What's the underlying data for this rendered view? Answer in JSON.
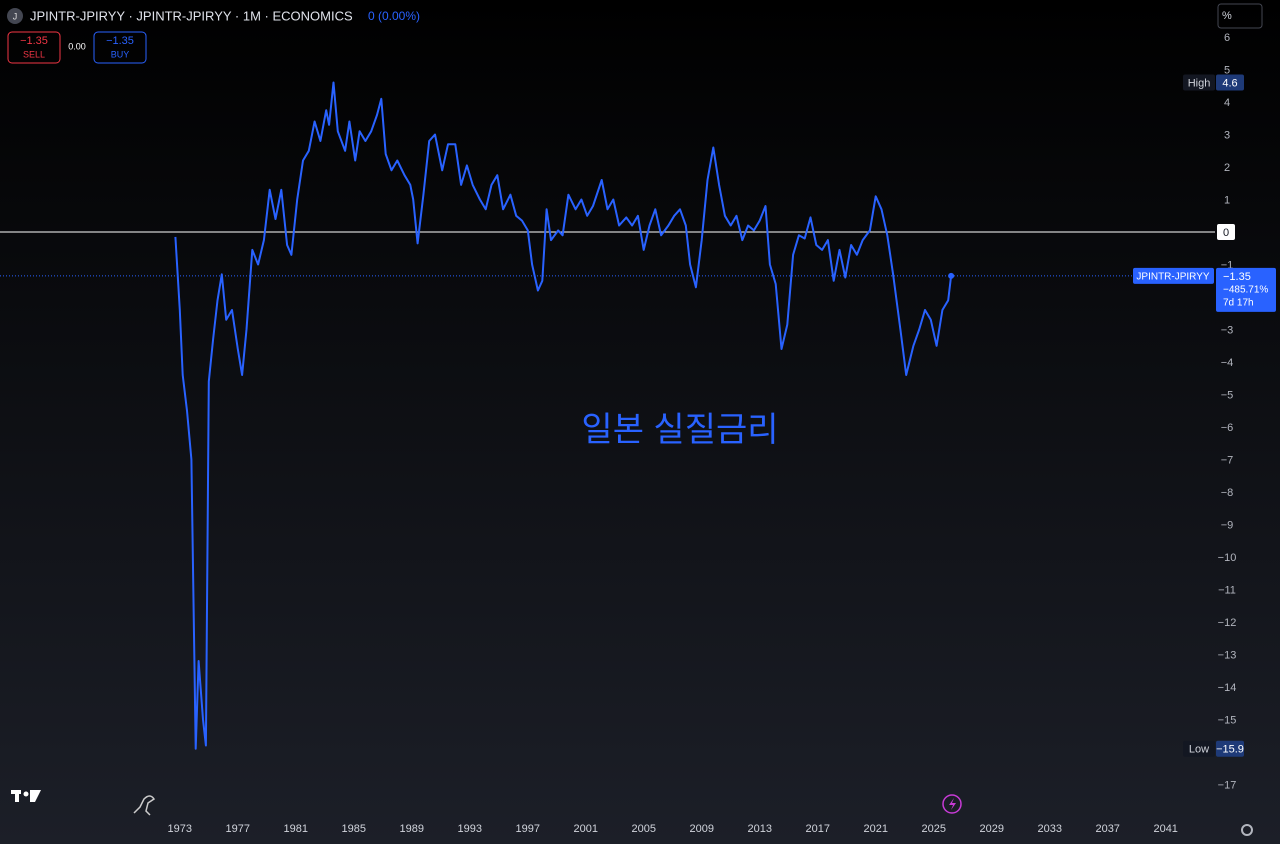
{
  "header": {
    "symbol": "JPINTR-JPIRYY · JPINTR-JPIRYY · 1M · ECONOMICS",
    "icon": "J",
    "change": "0 (0.00%)",
    "sell_price": "−1.35",
    "sell": "SELL",
    "spread": "0.00",
    "buy_price": "−1.35",
    "buy": "BUY",
    "scale_unit": "%"
  },
  "chart_data": {
    "type": "line",
    "annotation": "일본 실질금리",
    "x": [
      1972.7,
      1973.0,
      1973.2,
      1973.5,
      1973.8,
      1974.1,
      1974.3,
      1974.6,
      1974.8,
      1975.0,
      1975.3,
      1975.6,
      1975.9,
      1976.2,
      1976.6,
      1977.0,
      1977.3,
      1977.6,
      1978.0,
      1978.4,
      1978.8,
      1979.2,
      1979.6,
      1980.0,
      1980.4,
      1980.7,
      1981.1,
      1981.5,
      1981.9,
      1982.3,
      1982.7,
      1983.1,
      1983.3,
      1983.6,
      1983.9,
      1984.4,
      1984.7,
      1985.1,
      1985.4,
      1985.8,
      1986.2,
      1986.6,
      1986.9,
      1987.2,
      1987.6,
      1988.0,
      1988.5,
      1988.9,
      1989.1,
      1989.4,
      1989.8,
      1990.2,
      1990.6,
      1991.1,
      1991.5,
      1992.0,
      1992.4,
      1992.8,
      1993.2,
      1993.7,
      1994.1,
      1994.5,
      1994.9,
      1995.3,
      1995.8,
      1996.2,
      1996.6,
      1997.0,
      1997.3,
      1997.7,
      1998.0,
      1998.3,
      1998.6,
      1999.1,
      1999.4,
      1999.8,
      2000.3,
      2000.7,
      2001.1,
      2001.5,
      2002.1,
      2002.5,
      2002.9,
      2003.3,
      2003.8,
      2004.2,
      2004.6,
      2005.0,
      2005.4,
      2005.8,
      2006.2,
      2006.7,
      2007.1,
      2007.5,
      2007.9,
      2008.2,
      2008.6,
      2009.0,
      2009.4,
      2009.8,
      2010.2,
      2010.6,
      2011.0,
      2011.4,
      2011.8,
      2012.2,
      2012.6,
      2013.0,
      2013.4,
      2013.7,
      2014.1,
      2014.5,
      2014.9,
      2015.3,
      2015.7,
      2016.1,
      2016.5,
      2016.9,
      2017.3,
      2017.7,
      2018.1,
      2018.5,
      2018.9,
      2019.3,
      2019.7,
      2020.1,
      2020.6,
      2021.0,
      2021.4,
      2021.8,
      2022.2,
      2022.7,
      2023.1,
      2023.6,
      2024.0,
      2024.4,
      2024.8,
      2025.2,
      2025.6,
      2026.0,
      2026.2
    ],
    "series": [
      {
        "name": "JPINTR-JPIRYY",
        "color": "#2962ff",
        "values": [
          -0.15,
          -2.4,
          -4.4,
          -5.5,
          -7.0,
          -15.9,
          -13.2,
          -15.0,
          -15.8,
          -4.6,
          -3.3,
          -2.1,
          -1.3,
          -2.7,
          -2.4,
          -3.6,
          -4.4,
          -3.0,
          -0.55,
          -1.0,
          -0.25,
          1.3,
          0.4,
          1.3,
          -0.4,
          -0.7,
          1.0,
          2.2,
          2.5,
          3.4,
          2.8,
          3.75,
          3.3,
          4.6,
          3.1,
          2.5,
          3.4,
          2.2,
          3.1,
          2.8,
          3.1,
          3.6,
          4.1,
          2.4,
          1.9,
          2.2,
          1.75,
          1.45,
          1.0,
          -0.35,
          1.15,
          2.8,
          3.0,
          1.9,
          2.7,
          2.7,
          1.45,
          2.05,
          1.45,
          1.0,
          0.7,
          1.45,
          1.75,
          0.7,
          1.15,
          0.5,
          0.35,
          0.05,
          -1.0,
          -1.8,
          -1.5,
          0.7,
          -0.25,
          0.05,
          -0.1,
          1.15,
          0.7,
          1.0,
          0.5,
          0.8,
          1.6,
          0.7,
          1.0,
          0.2,
          0.45,
          0.2,
          0.5,
          -0.55,
          0.2,
          0.7,
          -0.1,
          0.2,
          0.5,
          0.7,
          0.2,
          -1.0,
          -1.7,
          -0.25,
          1.6,
          2.6,
          1.45,
          0.5,
          0.2,
          0.5,
          -0.25,
          0.2,
          0.05,
          0.35,
          0.8,
          -1.0,
          -1.6,
          -3.6,
          -2.85,
          -0.7,
          -0.1,
          -0.2,
          0.45,
          -0.4,
          -0.55,
          -0.25,
          -1.5,
          -0.55,
          -1.4,
          -0.4,
          -0.7,
          -0.25,
          0.05,
          1.1,
          0.7,
          -0.1,
          -1.3,
          -3.0,
          -4.4,
          -3.5,
          -3.0,
          -2.4,
          -2.7,
          -3.5,
          -2.4,
          -2.1,
          -1.35
        ]
      }
    ],
    "xlim": [
      1960.6,
      2044.4
    ],
    "xticks": [
      1973,
      1977,
      1981,
      1985,
      1989,
      1993,
      1997,
      2001,
      2005,
      2009,
      2013,
      2017,
      2021,
      2025,
      2029,
      2033,
      2037,
      2041
    ],
    "ylim": [
      -17.94,
      7.14
    ],
    "yticks": [
      6,
      5,
      4,
      3,
      2,
      1,
      0,
      {
        "value": -1,
        "label": "−1"
      },
      {
        "value": -3,
        "label": "−3"
      },
      {
        "value": -4,
        "label": "−4"
      },
      {
        "value": -5,
        "label": "−5"
      },
      {
        "value": -6,
        "label": "−6"
      },
      {
        "value": -7,
        "label": "−7"
      },
      {
        "value": -8,
        "label": "−8"
      },
      {
        "value": -9,
        "label": "−9"
      },
      {
        "value": -10,
        "label": "−10"
      },
      {
        "value": -11,
        "label": "−11"
      },
      {
        "value": -12,
        "label": "−12"
      },
      {
        "value": -13,
        "label": "−13"
      },
      {
        "value": -14,
        "label": "−14"
      },
      {
        "value": -15,
        "label": "−15"
      },
      {
        "value": -17,
        "label": "−17"
      }
    ],
    "high": {
      "label": "High",
      "value": 4.6
    },
    "low": {
      "label": "Low",
      "value": -15.9,
      "value_label": "−15.9"
    },
    "last_price": {
      "name": "JPINTR-JPIRYY",
      "value": -1.35,
      "value_label": "−1.35",
      "change": "−485.71%",
      "countdown": "7d 17h"
    }
  }
}
